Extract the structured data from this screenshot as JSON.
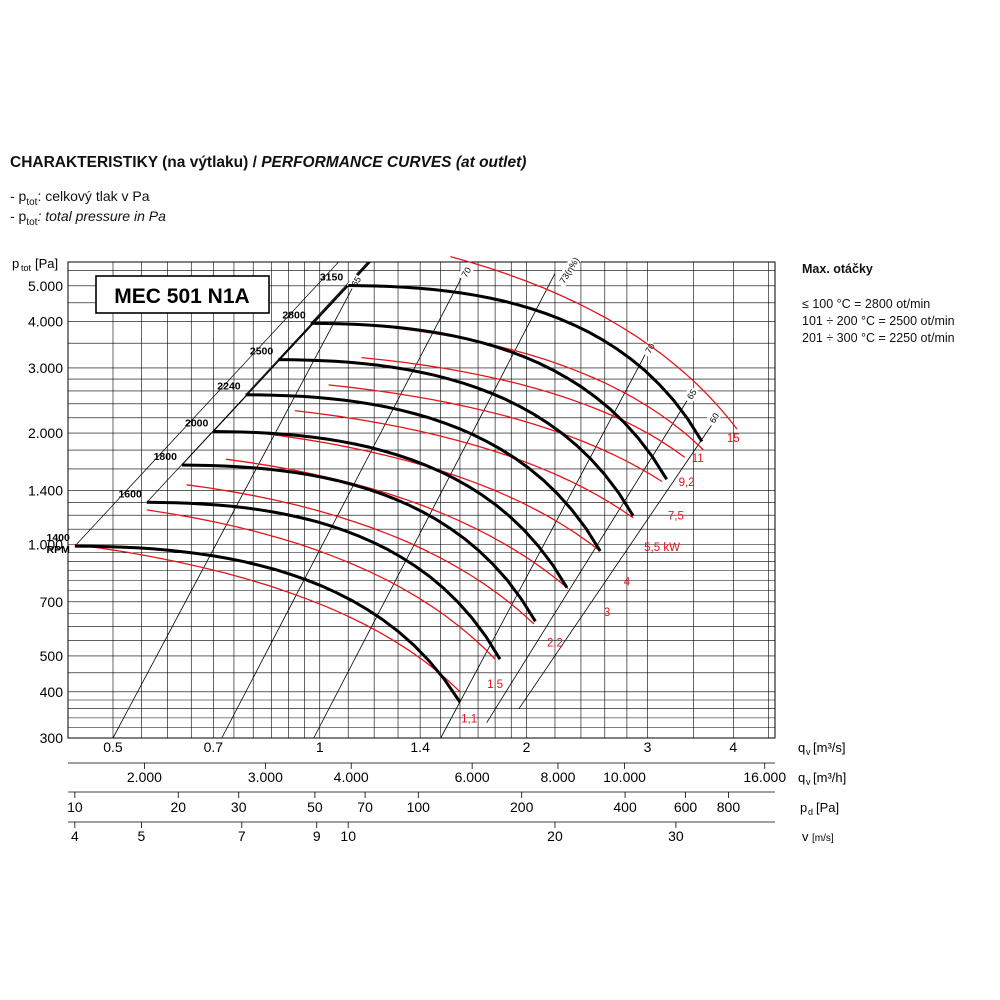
{
  "header": {
    "title_cs": "CHARAKTERISTIKY (na výtlaku) / ",
    "title_en": "PERFORMANCE CURVES (at outlet)",
    "legend_cs_prefix": "- p",
    "legend_sub": "tot",
    "legend_cs_text": ": celkový tlak v Pa",
    "legend_en_text": ": total pressure in Pa"
  },
  "side_panel": {
    "heading": "Max. otáčky",
    "lines": [
      "≤ 100 °C = 2800 ot/min",
      "101 ÷ 200 °C = 2500 ot/min",
      "201 ÷ 300 °C = 2250 ot/min"
    ]
  },
  "chart_data": {
    "type": "line",
    "model_label": "MEC 501 N1A",
    "y_axis": {
      "label": "p",
      "label_sub": "tot",
      "label_unit": " [Pa]",
      "scale": "log",
      "range": [
        300,
        5800
      ],
      "ticks": [
        300,
        400,
        500,
        700,
        1000,
        1400,
        2000,
        3000,
        4000,
        5000
      ],
      "tick_labels": [
        "300",
        "400",
        "500",
        "700",
        "1.000",
        "1.400",
        "2.000",
        "3.000",
        "4.000",
        "5.000"
      ]
    },
    "x_axis": {
      "scale": "log",
      "range": [
        0.43,
        4.6
      ],
      "qv_m3s": {
        "label": "q",
        "label_sub": "v",
        "unit": " [m³/s]",
        "ticks": [
          0.5,
          0.7,
          1,
          1.4,
          2,
          3,
          4
        ],
        "tick_labels": [
          "0.5",
          "0.7",
          "1",
          "1.4",
          "2",
          "3",
          "4"
        ]
      },
      "qv_m3h": {
        "label": "q",
        "label_sub": "v",
        "unit": " [m³/h]",
        "ticks": [
          2000,
          3000,
          4000,
          6000,
          8000,
          10000,
          16000
        ],
        "tick_labels": [
          "2.000",
          "3.000",
          "4.000",
          "6.000",
          "8.000",
          "10.000",
          "16.000"
        ]
      },
      "pd_pa": {
        "label": "p",
        "label_sub": "d",
        "unit": " [Pa]",
        "ticks": [
          10,
          20,
          30,
          50,
          70,
          100,
          200,
          400,
          600,
          800
        ],
        "tick_labels": [
          "10",
          "20",
          "30",
          "50",
          "70",
          "100",
          "200",
          "400",
          "600",
          "800"
        ]
      },
      "v_ms": {
        "label": "v",
        "unit": " [m/s]",
        "ticks": [
          4,
          5,
          7,
          9,
          10,
          20,
          30
        ],
        "tick_labels": [
          "4",
          "5",
          "7",
          "9",
          "10",
          "20",
          "30"
        ]
      }
    },
    "rpm_curves": [
      {
        "rpm": 1400,
        "label": "1400",
        "label2": "RPM",
        "start_q": 0.44,
        "start_p": 990,
        "end_q": 1.6,
        "end_p": 375
      },
      {
        "rpm": 1600,
        "label": "1600",
        "start_q": 0.56,
        "start_p": 1300,
        "end_q": 1.83,
        "end_p": 490
      },
      {
        "rpm": 1800,
        "label": "1800",
        "start_q": 0.63,
        "start_p": 1640,
        "end_q": 2.06,
        "end_p": 620
      },
      {
        "rpm": 2000,
        "label": "2000",
        "start_q": 0.7,
        "start_p": 2020,
        "end_q": 2.29,
        "end_p": 765
      },
      {
        "rpm": 2240,
        "label": "2240",
        "start_q": 0.78,
        "start_p": 2540,
        "end_q": 2.56,
        "end_p": 960
      },
      {
        "rpm": 2500,
        "label": "2500",
        "start_q": 0.87,
        "start_p": 3160,
        "end_q": 2.86,
        "end_p": 1195
      },
      {
        "rpm": 2800,
        "label": "2800",
        "start_q": 0.97,
        "start_p": 3960,
        "end_q": 3.2,
        "end_p": 1500
      },
      {
        "rpm": 3150,
        "label": "3150",
        "start_q": 1.1,
        "start_p": 5010,
        "end_q": 3.6,
        "end_p": 1900
      }
    ],
    "power_curves": [
      {
        "label": "1,1",
        "kw": 1.1
      },
      {
        "label": "1,5",
        "kw": 1.5
      },
      {
        "label": "2,2",
        "kw": 2.2
      },
      {
        "label": "3",
        "kw": 3
      },
      {
        "label": "4",
        "kw": 4
      },
      {
        "label": "5,5 kW",
        "kw": 5.5
      },
      {
        "label": "7,5",
        "kw": 7.5
      },
      {
        "label": "9,2",
        "kw": 9.2
      },
      {
        "label": "11",
        "kw": 11
      },
      {
        "label": "15",
        "kw": 15
      }
    ],
    "efficiency_lines": [
      {
        "label": "65",
        "position": "left"
      },
      {
        "label": "70",
        "position": "left"
      },
      {
        "label": "73(η%)",
        "position": "peak"
      },
      {
        "label": "70",
        "position": "right"
      },
      {
        "label": "65",
        "position": "right"
      },
      {
        "label": "60",
        "position": "right"
      }
    ],
    "grid": true,
    "colors": {
      "rpm": "#000000",
      "power": "#e8141c",
      "grid": "#000000"
    }
  }
}
